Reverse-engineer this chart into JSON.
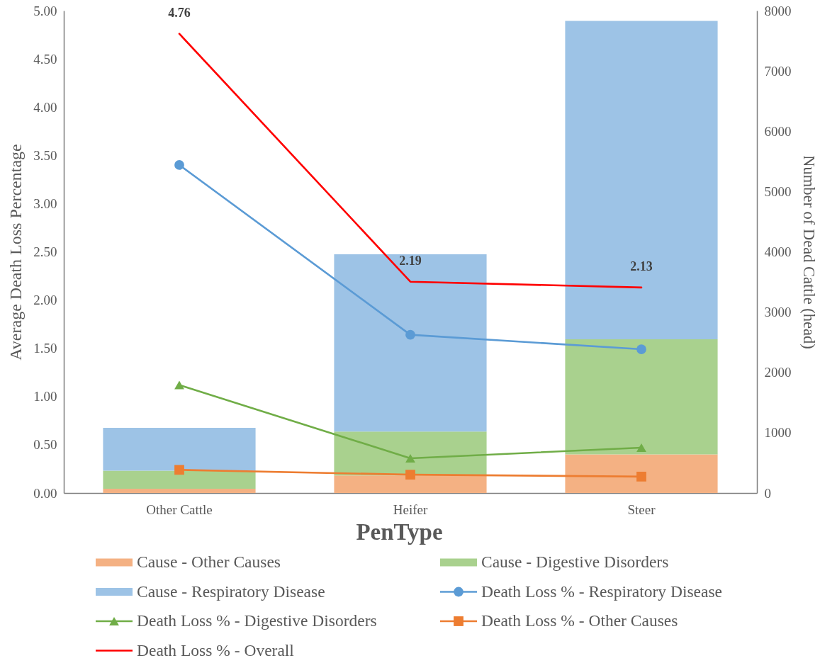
{
  "chart_data": {
    "type": "bar",
    "stacked": true,
    "categories": [
      "Other Cattle",
      "Heifer",
      "Steer"
    ],
    "xlabel": "PenType",
    "ylabel": "Average Death Loss Percentage",
    "y2label": "Number of Dead Cattle (head)",
    "ylim": [
      0,
      5
    ],
    "yticks": [
      {
        "value": 0,
        "label": "0.00"
      },
      {
        "value": 0.5,
        "label": "0.50"
      },
      {
        "value": 1,
        "label": "1.00"
      },
      {
        "value": 1.5,
        "label": "1.50"
      },
      {
        "value": 2,
        "label": "2.00"
      },
      {
        "value": 2.5,
        "label": "2.50"
      },
      {
        "value": 3,
        "label": "3.00"
      },
      {
        "value": 3.5,
        "label": "3.50"
      },
      {
        "value": 4,
        "label": "4.00"
      },
      {
        "value": 4.5,
        "label": "4.50"
      },
      {
        "value": 5,
        "label": "5.00"
      }
    ],
    "y2lim": [
      0,
      8000
    ],
    "y2ticks": [
      0,
      1000,
      2000,
      3000,
      4000,
      5000,
      6000,
      7000,
      8000
    ],
    "grid": false,
    "legend": "bottom",
    "line_style": "solid",
    "series": [
      {
        "name": "Cause - Other Causes",
        "axis": "y2",
        "color": "#f4b183",
        "values": [
          70,
          290,
          640
        ]
      },
      {
        "name": "Cause - Digestive Disorders",
        "axis": "y2",
        "color": "#a9d18e",
        "values": [
          300,
          730,
          1910
        ]
      },
      {
        "name": "Cause - Respiratory Disease",
        "axis": "y2",
        "color": "#9dc3e6",
        "values": [
          710,
          2940,
          5280
        ]
      },
      {
        "name": "Death Loss % - Respiratory Disease",
        "type": "line",
        "color": "#5b9bd5",
        "marker": "circle",
        "values": [
          3.4,
          1.64,
          1.49
        ]
      },
      {
        "name": "Death Loss % - Digestive Disorders",
        "type": "line",
        "color": "#70ad47",
        "marker": "triangle",
        "values": [
          1.12,
          0.36,
          0.47
        ]
      },
      {
        "name": "Death Loss % - Other Causes",
        "type": "line",
        "color": "#ed7d31",
        "marker": "square",
        "values": [
          0.24,
          0.19,
          0.17
        ]
      },
      {
        "name": "Death Loss % - Overall",
        "type": "line",
        "color": "#ff0000",
        "marker": "none",
        "values": [
          4.76,
          2.19,
          2.13
        ],
        "value_labels": [
          "4.76",
          "2.19",
          "2.13"
        ]
      }
    ]
  }
}
